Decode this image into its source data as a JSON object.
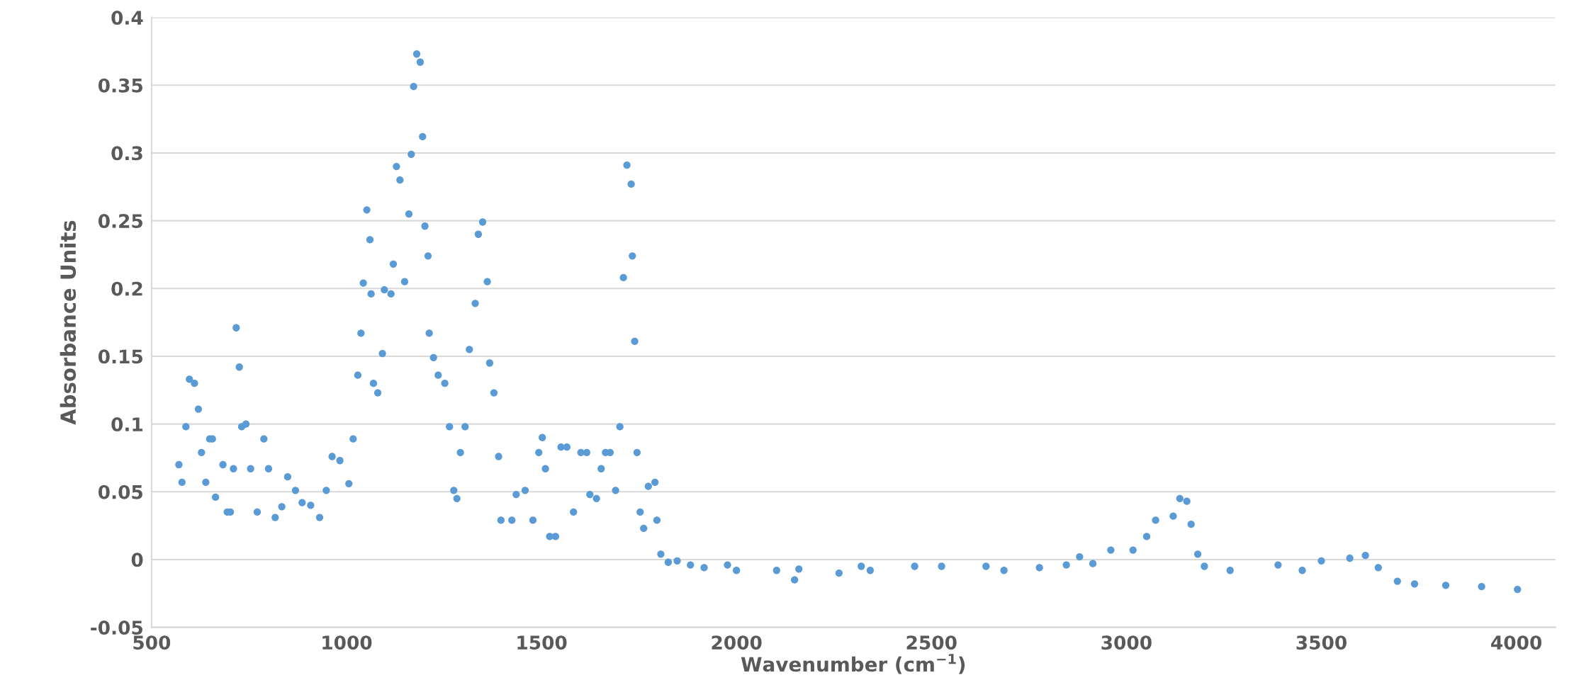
{
  "chart_data": {
    "type": "scatter",
    "xlabel": "Wavenumber (cm$^{−1}$)",
    "ylabel": "Absorbance Units",
    "xlim": [
      500,
      4100
    ],
    "xticks": [
      500,
      1000,
      1500,
      2000,
      2500,
      3000,
      3500,
      4000
    ],
    "ylim": [
      -0.05,
      0.4
    ],
    "yticks": [
      -0.05,
      0,
      0.05,
      0.1,
      0.15,
      0.2,
      0.25,
      0.3,
      0.35,
      0.4
    ],
    "grid": "y",
    "marker": "circle",
    "series": [
      {
        "color": "#5b9bd5",
        "x": [
          570,
          578,
          588,
          597,
          610,
          620,
          628,
          639,
          649,
          656,
          664,
          683,
          694,
          702,
          710,
          717,
          725,
          731,
          742,
          754,
          771,
          788,
          800,
          817,
          834,
          849,
          869,
          886,
          908,
          931,
          948,
          963,
          983,
          1006,
          1017,
          1029,
          1037,
          1043,
          1052,
          1060,
          1063,
          1069,
          1080,
          1092,
          1097,
          1114,
          1120,
          1128,
          1137,
          1149,
          1160,
          1166,
          1172,
          1180,
          1189,
          1195,
          1201,
          1209,
          1212,
          1223,
          1235,
          1252,
          1264,
          1275,
          1283,
          1292,
          1304,
          1315,
          1330,
          1338,
          1349,
          1361,
          1367,
          1378,
          1390,
          1396,
          1424,
          1435,
          1458,
          1478,
          1493,
          1502,
          1510,
          1521,
          1536,
          1550,
          1565,
          1582,
          1601,
          1616,
          1624,
          1641,
          1653,
          1664,
          1676,
          1690,
          1701,
          1710,
          1719,
          1730,
          1733,
          1739,
          1745,
          1753,
          1762,
          1774,
          1791,
          1796,
          1806,
          1825,
          1848,
          1882,
          1917,
          1977,
          2000,
          2103,
          2149,
          2160,
          2263,
          2320,
          2343,
          2457,
          2526,
          2640,
          2686,
          2777,
          2846,
          2880,
          2914,
          2960,
          3017,
          3052,
          3075,
          3120,
          3137,
          3155,
          3166,
          3183,
          3200,
          3266,
          3389,
          3451,
          3500,
          3573,
          3613,
          3646,
          3695,
          3739,
          3819,
          3911,
          4003
        ],
        "values": [
          0.07,
          0.057,
          0.098,
          0.133,
          0.13,
          0.111,
          0.079,
          0.057,
          0.089,
          0.089,
          0.046,
          0.07,
          0.035,
          0.035,
          0.067,
          0.171,
          0.142,
          0.098,
          0.1,
          0.067,
          0.035,
          0.089,
          0.067,
          0.031,
          0.039,
          0.061,
          0.051,
          0.042,
          0.04,
          0.031,
          0.051,
          0.076,
          0.073,
          0.056,
          0.089,
          0.136,
          0.167,
          0.204,
          0.258,
          0.236,
          0.196,
          0.13,
          0.123,
          0.152,
          0.199,
          0.196,
          0.218,
          0.29,
          0.28,
          0.205,
          0.255,
          0.299,
          0.349,
          0.373,
          0.367,
          0.312,
          0.246,
          0.224,
          0.167,
          0.149,
          0.136,
          0.13,
          0.098,
          0.051,
          0.045,
          0.079,
          0.098,
          0.155,
          0.189,
          0.24,
          0.249,
          0.205,
          0.145,
          0.123,
          0.076,
          0.029,
          0.029,
          0.048,
          0.051,
          0.029,
          0.079,
          0.09,
          0.067,
          0.017,
          0.017,
          0.083,
          0.083,
          0.035,
          0.079,
          0.079,
          0.048,
          0.045,
          0.067,
          0.079,
          0.079,
          0.051,
          0.098,
          0.208,
          0.291,
          0.277,
          0.224,
          0.161,
          0.079,
          0.035,
          0.023,
          0.054,
          0.057,
          0.029,
          0.004,
          -0.002,
          -0.001,
          -0.004,
          -0.006,
          -0.004,
          -0.008,
          -0.008,
          -0.015,
          -0.007,
          -0.01,
          -0.005,
          -0.008,
          -0.005,
          -0.005,
          -0.005,
          -0.008,
          -0.006,
          -0.004,
          0.002,
          -0.003,
          0.007,
          0.007,
          0.017,
          0.029,
          0.032,
          0.045,
          0.043,
          0.026,
          0.004,
          -0.005,
          -0.008,
          -0.004,
          -0.008,
          -0.001,
          0.001,
          0.003,
          -0.006,
          -0.016,
          -0.018,
          -0.019,
          -0.02,
          -0.022
        ]
      }
    ]
  }
}
